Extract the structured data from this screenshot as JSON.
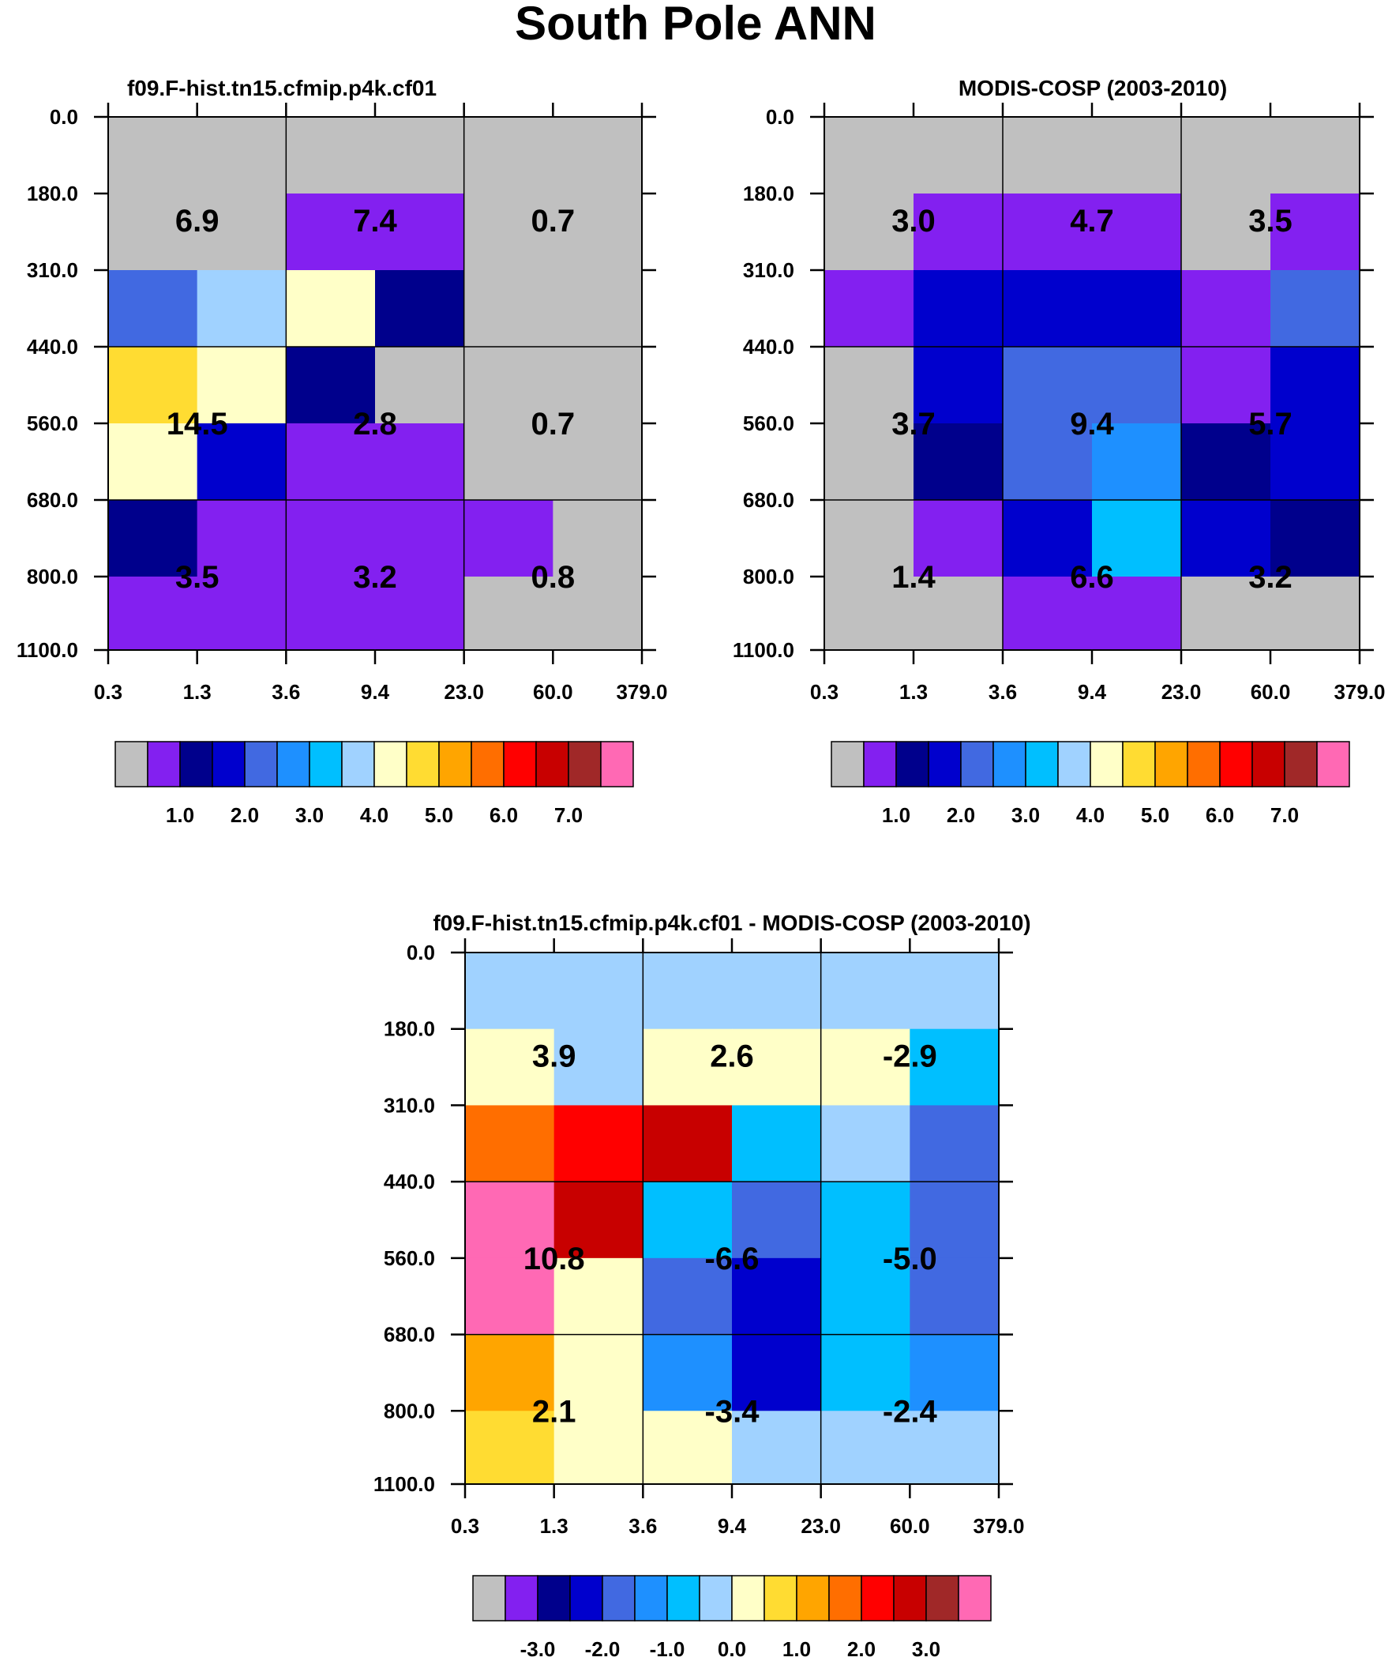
{
  "figure": {
    "title": "South Pole ANN"
  },
  "x_ticks": [
    "0.3",
    "1.3",
    "3.6",
    "9.4",
    "23.0",
    "60.0",
    "379.0"
  ],
  "y_ticks": [
    "0.0",
    "180.0",
    "310.0",
    "440.0",
    "560.0",
    "680.0",
    "800.0",
    "1100.0"
  ],
  "legend_colors": [
    "#c0c0c0",
    "#8320f0",
    "#00008c",
    "#0000cd",
    "#4169e1",
    "#1e90ff",
    "#00bfff",
    "#a0d2ff",
    "#ffffc8",
    "#ffdc32",
    "#ffa500",
    "#ff6e00",
    "#ff0000",
    "#c80000",
    "#a02828",
    "#ff69b4"
  ],
  "chart_data": [
    {
      "type": "heatmap",
      "title": "f09.F-hist.tn15.cfmip.p4k.cf01",
      "xlabel": "",
      "ylabel": "",
      "cells": [
        [
          0,
          0,
          0,
          0,
          0,
          0
        ],
        [
          0,
          0,
          1,
          1,
          0,
          0
        ],
        [
          4,
          7,
          8,
          2,
          0,
          0
        ],
        [
          9,
          8,
          2,
          0,
          0,
          0
        ],
        [
          8,
          3,
          1,
          1,
          0,
          0
        ],
        [
          2,
          1,
          1,
          1,
          1,
          0
        ],
        [
          1,
          1,
          1,
          1,
          0,
          0
        ]
      ],
      "block_values": [
        [
          "6.9",
          "7.4",
          "0.7"
        ],
        [
          "14.5",
          "2.8",
          "0.7"
        ],
        [
          "3.5",
          "3.2",
          "0.8"
        ]
      ],
      "legend_labels": [
        "1.0",
        "2.0",
        "3.0",
        "4.0",
        "5.0",
        "6.0",
        "7.0"
      ]
    },
    {
      "type": "heatmap",
      "title": "MODIS-COSP (2003-2010)",
      "xlabel": "",
      "ylabel": "",
      "cells": [
        [
          0,
          0,
          0,
          0,
          0,
          0
        ],
        [
          0,
          1,
          1,
          1,
          0,
          1
        ],
        [
          1,
          3,
          3,
          3,
          1,
          4
        ],
        [
          0,
          3,
          4,
          4,
          1,
          3
        ],
        [
          0,
          2,
          4,
          5,
          2,
          3
        ],
        [
          0,
          1,
          3,
          6,
          3,
          2
        ],
        [
          0,
          0,
          1,
          1,
          0,
          0
        ]
      ],
      "block_values": [
        [
          "3.0",
          "4.7",
          "3.5"
        ],
        [
          "3.7",
          "9.4",
          "5.7"
        ],
        [
          "1.4",
          "6.6",
          "3.2"
        ]
      ],
      "legend_labels": [
        "1.0",
        "2.0",
        "3.0",
        "4.0",
        "5.0",
        "6.0",
        "7.0"
      ]
    },
    {
      "type": "heatmap",
      "title": "f09.F-hist.tn15.cfmip.p4k.cf01 - MODIS-COSP (2003-2010)",
      "xlabel": "",
      "ylabel": "",
      "cells": [
        [
          7,
          7,
          7,
          7,
          7,
          7
        ],
        [
          8,
          7,
          8,
          8,
          8,
          6
        ],
        [
          11,
          12,
          13,
          6,
          7,
          4
        ],
        [
          15,
          13,
          6,
          4,
          6,
          4
        ],
        [
          15,
          8,
          4,
          3,
          6,
          4
        ],
        [
          10,
          8,
          5,
          3,
          6,
          5
        ],
        [
          9,
          8,
          8,
          7,
          7,
          7
        ]
      ],
      "block_values": [
        [
          "3.9",
          "2.6",
          "-2.9"
        ],
        [
          "10.8",
          "-6.6",
          "-5.0"
        ],
        [
          "2.1",
          "-3.4",
          "-2.4"
        ]
      ],
      "legend_labels": [
        "-3.0",
        "-2.0",
        "-1.0",
        "0.0",
        "1.0",
        "2.0",
        "3.0"
      ]
    }
  ]
}
